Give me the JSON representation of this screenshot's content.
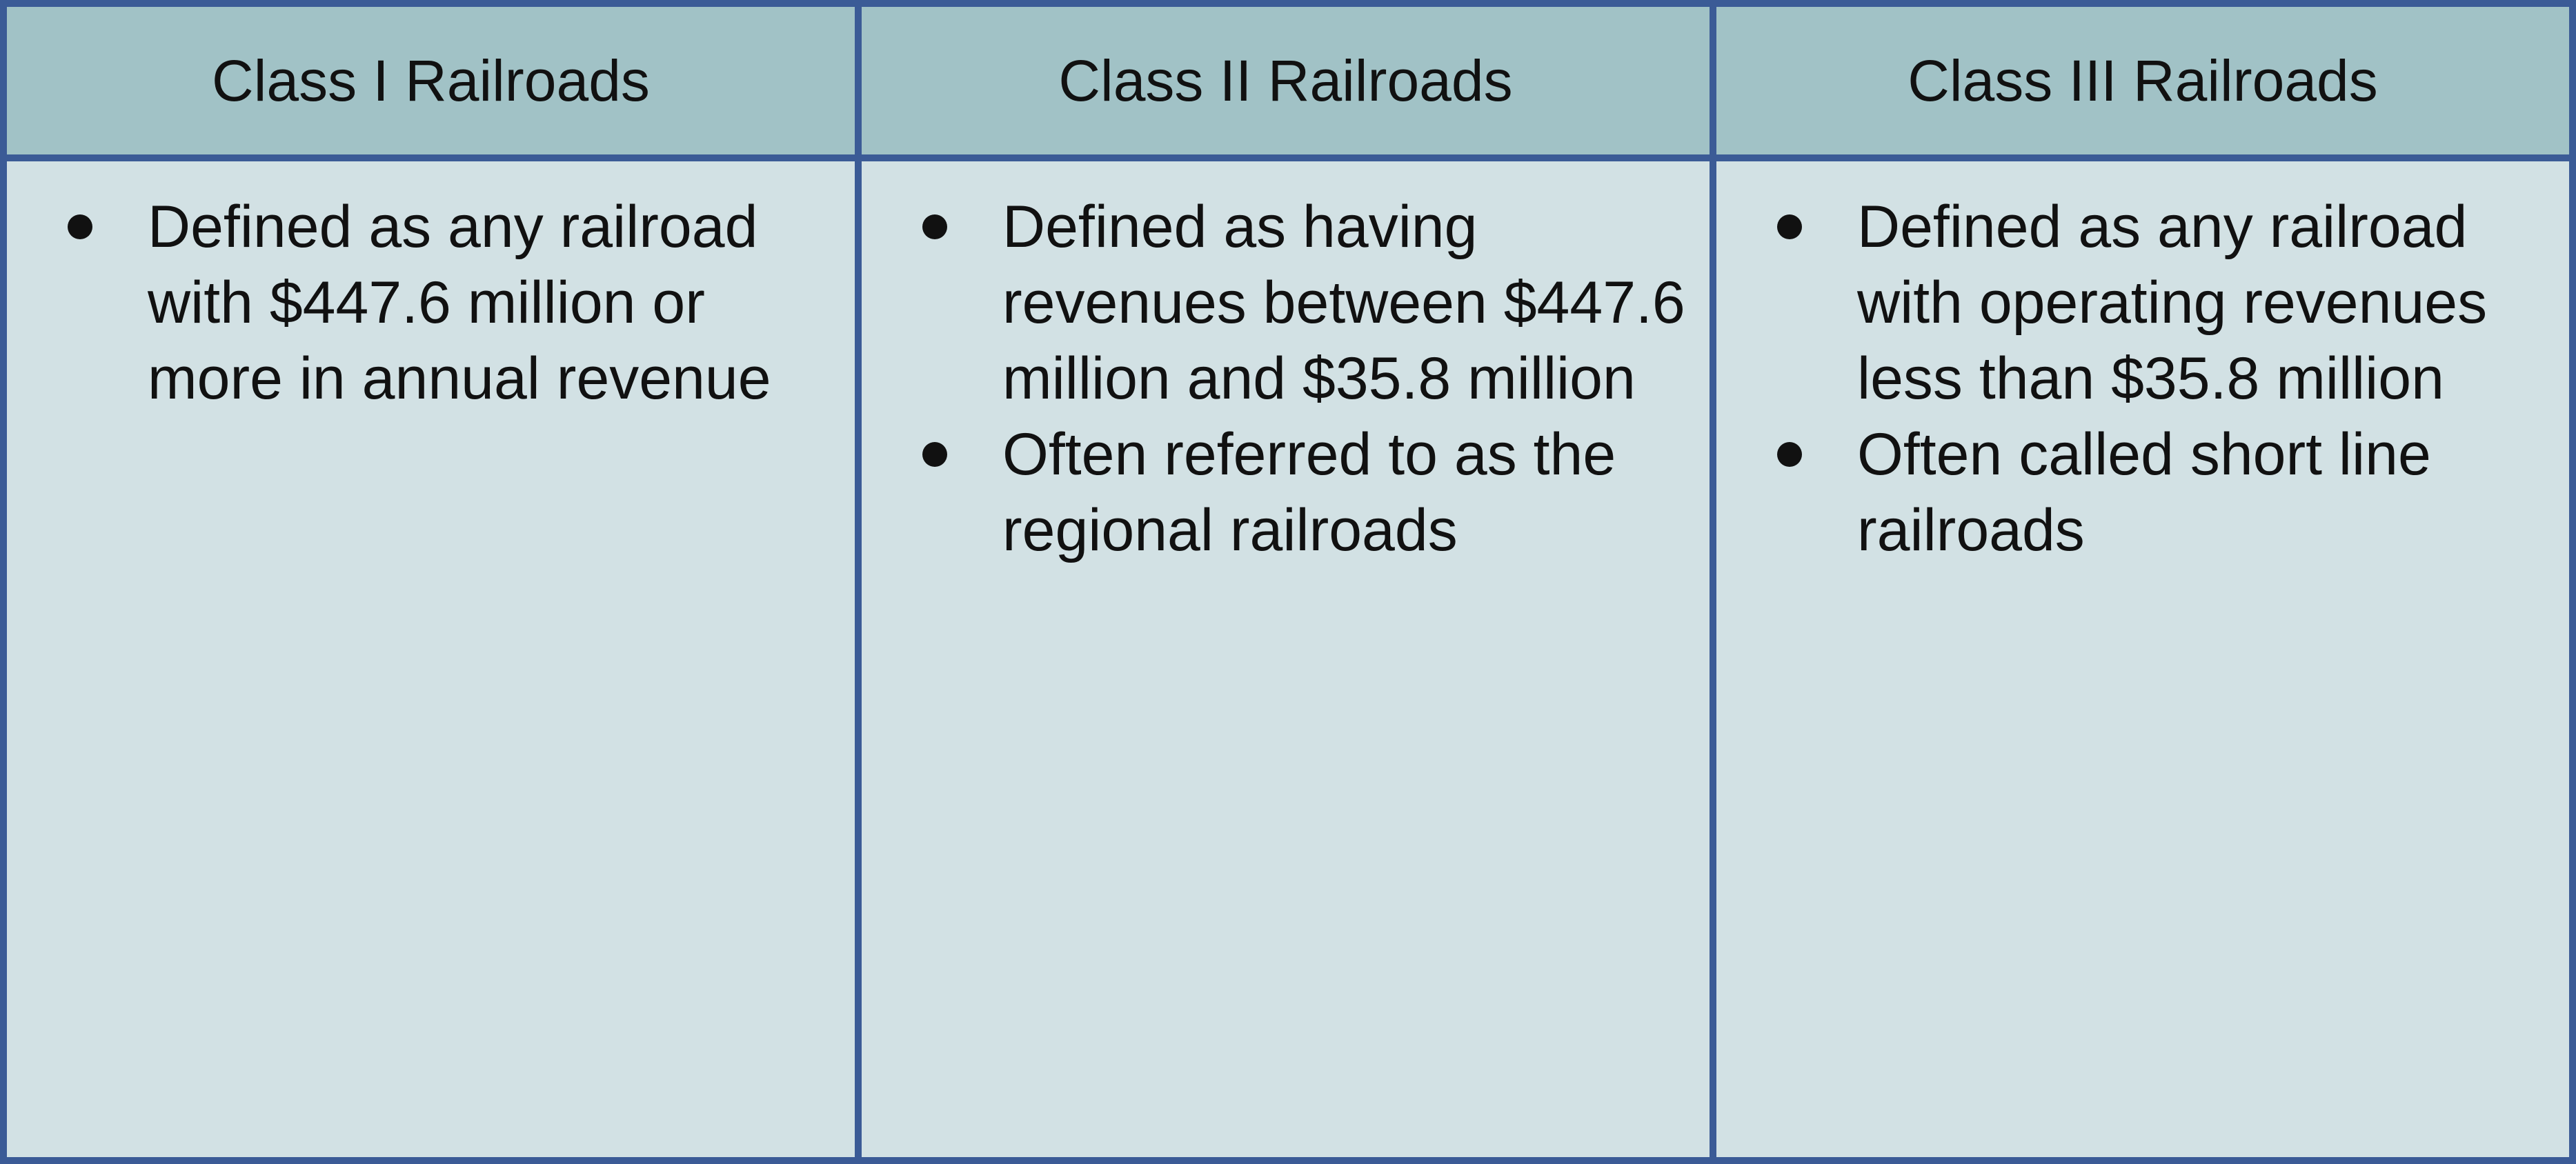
{
  "table": {
    "columns": [
      {
        "header": "Class I Railroads",
        "items": [
          "Defined as any railroad with $447.6 million or more in annual revenue"
        ]
      },
      {
        "header": "Class II Railroads",
        "items": [
          "Defined as having revenues between $447.6 million and $35.8 million",
          "Often referred to as the regional railroads"
        ]
      },
      {
        "header": "Class III Railroads",
        "items": [
          "Defined as any railroad with operating revenues less than $35.8 million",
          "Often called short line railroads"
        ]
      }
    ],
    "colors": {
      "border": "#3b5b96",
      "header_bg": "#a1c2c6",
      "body_bg": "#d2e1e4"
    }
  }
}
